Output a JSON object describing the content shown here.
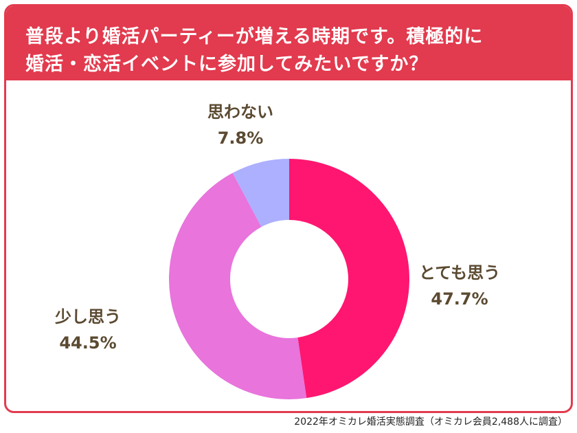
{
  "header": {
    "title_line1": "普段より婚活パーティーが増える時期です。積極的に",
    "title_line2": "婚活・恋活イベントに参加してみたいですか？"
  },
  "chart_data": {
    "type": "pie",
    "title": "普段より婚活パーティーが増える時期です。積極的に婚活・恋活イベントに参加してみたいですか？",
    "categories": [
      "とても思う",
      "少し思う",
      "思わない"
    ],
    "values": [
      47.7,
      44.5,
      7.8
    ],
    "value_labels": [
      "47.7%",
      "44.5%",
      "7.8%"
    ],
    "colors": [
      "#ff1670",
      "#e874dc",
      "#adafff"
    ],
    "donut": true
  },
  "footer": {
    "source": "2022年オミカレ婚活実態調査（オミカレ会員2,488人に調査）"
  },
  "colors": {
    "accent": "#e23a4e",
    "label_text": "#5b4a31"
  }
}
